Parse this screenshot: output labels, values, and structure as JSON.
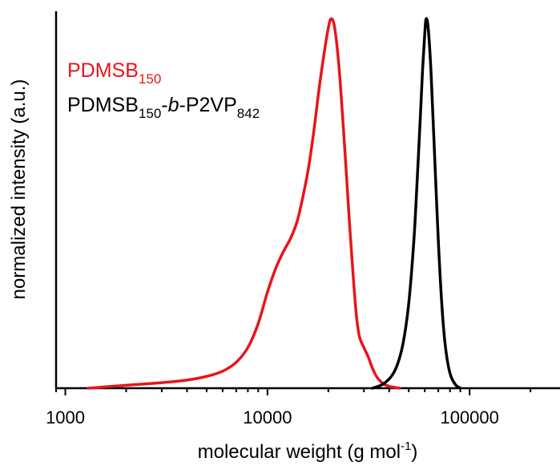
{
  "chart_data": {
    "type": "line",
    "title": "",
    "xlabel": "molecular weight (g mol",
    "xlabel_sup": "-1",
    "xlabel_close": ")",
    "ylabel": "normalized intensity (a.u.)",
    "xscale": "log",
    "xlim": [
      900,
      280000
    ],
    "ylim": [
      0,
      1.02
    ],
    "x_ticks": [
      1000,
      10000,
      100000
    ],
    "x_tick_labels": [
      "1000",
      "10000",
      "100000"
    ],
    "grid": false,
    "legend_position": "top-left",
    "series": [
      {
        "name": "PDMSB150",
        "legend_parts": [
          {
            "text": "PDMSB",
            "style": "normal"
          },
          {
            "text": "150",
            "style": "sub"
          }
        ],
        "color": "#e8141c",
        "points": [
          [
            1300,
            0.0
          ],
          [
            2000,
            0.008
          ],
          [
            3000,
            0.015
          ],
          [
            4000,
            0.022
          ],
          [
            5000,
            0.032
          ],
          [
            6000,
            0.046
          ],
          [
            7000,
            0.07
          ],
          [
            8000,
            0.11
          ],
          [
            9000,
            0.175
          ],
          [
            10000,
            0.26
          ],
          [
            11000,
            0.325
          ],
          [
            12000,
            0.37
          ],
          [
            13000,
            0.405
          ],
          [
            14000,
            0.45
          ],
          [
            15000,
            0.52
          ],
          [
            16000,
            0.6
          ],
          [
            17000,
            0.7
          ],
          [
            18000,
            0.81
          ],
          [
            19000,
            0.9
          ],
          [
            20000,
            0.975
          ],
          [
            20700,
            1.0
          ],
          [
            21500,
            0.975
          ],
          [
            22500,
            0.88
          ],
          [
            23500,
            0.74
          ],
          [
            24500,
            0.59
          ],
          [
            25500,
            0.44
          ],
          [
            26500,
            0.31
          ],
          [
            27500,
            0.2
          ],
          [
            28500,
            0.14
          ],
          [
            30000,
            0.11
          ],
          [
            31500,
            0.085
          ],
          [
            33000,
            0.055
          ],
          [
            35000,
            0.028
          ],
          [
            37500,
            0.012
          ],
          [
            40000,
            0.005
          ],
          [
            45000,
            0.0
          ]
        ]
      },
      {
        "name": "PDMSB150-b-P2VP842",
        "legend_parts": [
          {
            "text": "PDMSB",
            "style": "normal"
          },
          {
            "text": "150",
            "style": "sub"
          },
          {
            "text": "-",
            "style": "normal"
          },
          {
            "text": "b",
            "style": "italic"
          },
          {
            "text": "-P2VP",
            "style": "normal"
          },
          {
            "text": "842",
            "style": "sub"
          }
        ],
        "color": "#000000",
        "points": [
          [
            33000,
            0.0
          ],
          [
            37000,
            0.01
          ],
          [
            41000,
            0.032
          ],
          [
            44000,
            0.065
          ],
          [
            47000,
            0.125
          ],
          [
            50000,
            0.23
          ],
          [
            53000,
            0.4
          ],
          [
            55000,
            0.56
          ],
          [
            57000,
            0.73
          ],
          [
            58500,
            0.86
          ],
          [
            60000,
            0.96
          ],
          [
            61000,
            1.0
          ],
          [
            62500,
            0.97
          ],
          [
            64500,
            0.85
          ],
          [
            67000,
            0.64
          ],
          [
            70000,
            0.4
          ],
          [
            73000,
            0.22
          ],
          [
            76000,
            0.11
          ],
          [
            80000,
            0.04
          ],
          [
            85000,
            0.01
          ],
          [
            90000,
            0.0
          ]
        ]
      }
    ]
  }
}
